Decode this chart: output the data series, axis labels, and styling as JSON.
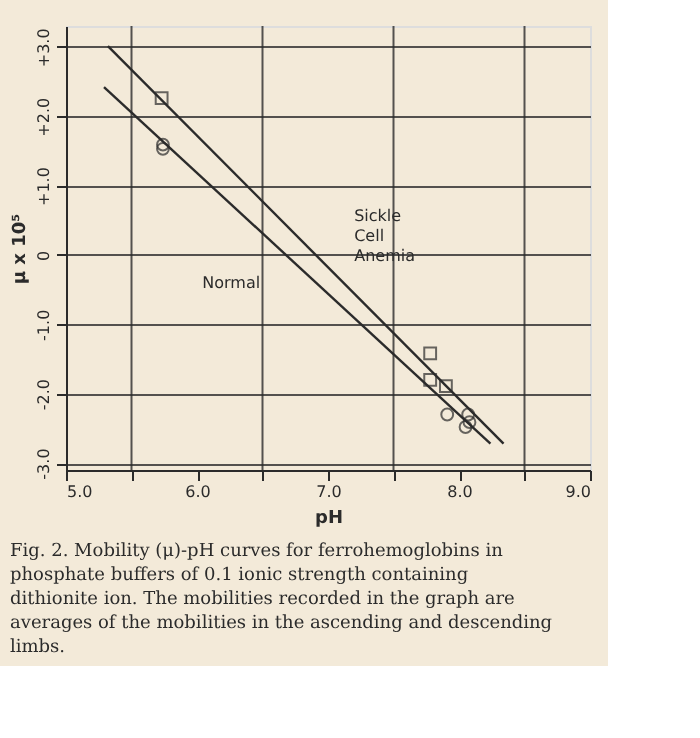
{
  "chart_data": {
    "type": "scatter",
    "xlabel": "pH",
    "ylabel": "μ x 10⁵",
    "xlim": [
      5.0,
      9.0
    ],
    "ylim": [
      -3.1,
      3.3
    ],
    "xticks": [
      {
        "value": 5,
        "label": "5.0"
      },
      {
        "value": 5.5,
        "label": null
      },
      {
        "value": 6,
        "label": "6.0"
      },
      {
        "value": 6.5,
        "label": null
      },
      {
        "value": 7,
        "label": "7.0"
      },
      {
        "value": 7.5,
        "label": null
      },
      {
        "value": 8,
        "label": "8.0"
      },
      {
        "value": 8.5,
        "label": null
      },
      {
        "value": 9,
        "label": "9.0"
      }
    ],
    "yticks": [
      {
        "value": 3,
        "label": "+3.0"
      },
      {
        "value": 2,
        "label": "+2.0"
      },
      {
        "value": 1,
        "label": "+1.0"
      },
      0,
      {
        "value": -1,
        "label": "-1.0"
      },
      {
        "value": -2,
        "label": "-2.0"
      },
      {
        "value": -3,
        "label": "-3.0"
      }
    ],
    "grid": true,
    "series": [
      {
        "type": "line",
        "color": "#2b2b2b",
        "x": [
          5.32,
          8.34
        ],
        "values": [
          3.01,
          -2.72
        ],
        "marker": "none",
        "line_style": "solid"
      },
      {
        "type": "line",
        "color": "#2b2b2b",
        "x": [
          5.29,
          8.24
        ],
        "values": [
          2.42,
          -2.72
        ],
        "marker": "none",
        "line_style": "solid"
      },
      {
        "type": "scatter",
        "color": "#2b2b2b",
        "marker": "square",
        "x": [
          5.73,
          7.78,
          7.78,
          7.9
        ],
        "values": [
          2.26,
          -1.42,
          -1.8,
          -1.89
        ]
      },
      {
        "type": "scatter",
        "color": "#2b2b2b",
        "marker": "circle",
        "x": [
          5.74,
          5.74,
          7.91,
          8.07,
          8.08,
          8.05
        ],
        "values": [
          1.59,
          1.53,
          -2.3,
          -2.3,
          -2.41,
          -2.48
        ]
      }
    ],
    "annotations": [
      "Sickle Cell Anemia",
      "Normal",
      "Fig. 2. Mobility (μ)-pH curves for ferrohemoglobins in phosphate buffers of 0.1 ionic strength containing dithionite ion. The mobilities recorded in the graph are averages of the mobilities in the ascending and descending limbs."
    ]
  }
}
